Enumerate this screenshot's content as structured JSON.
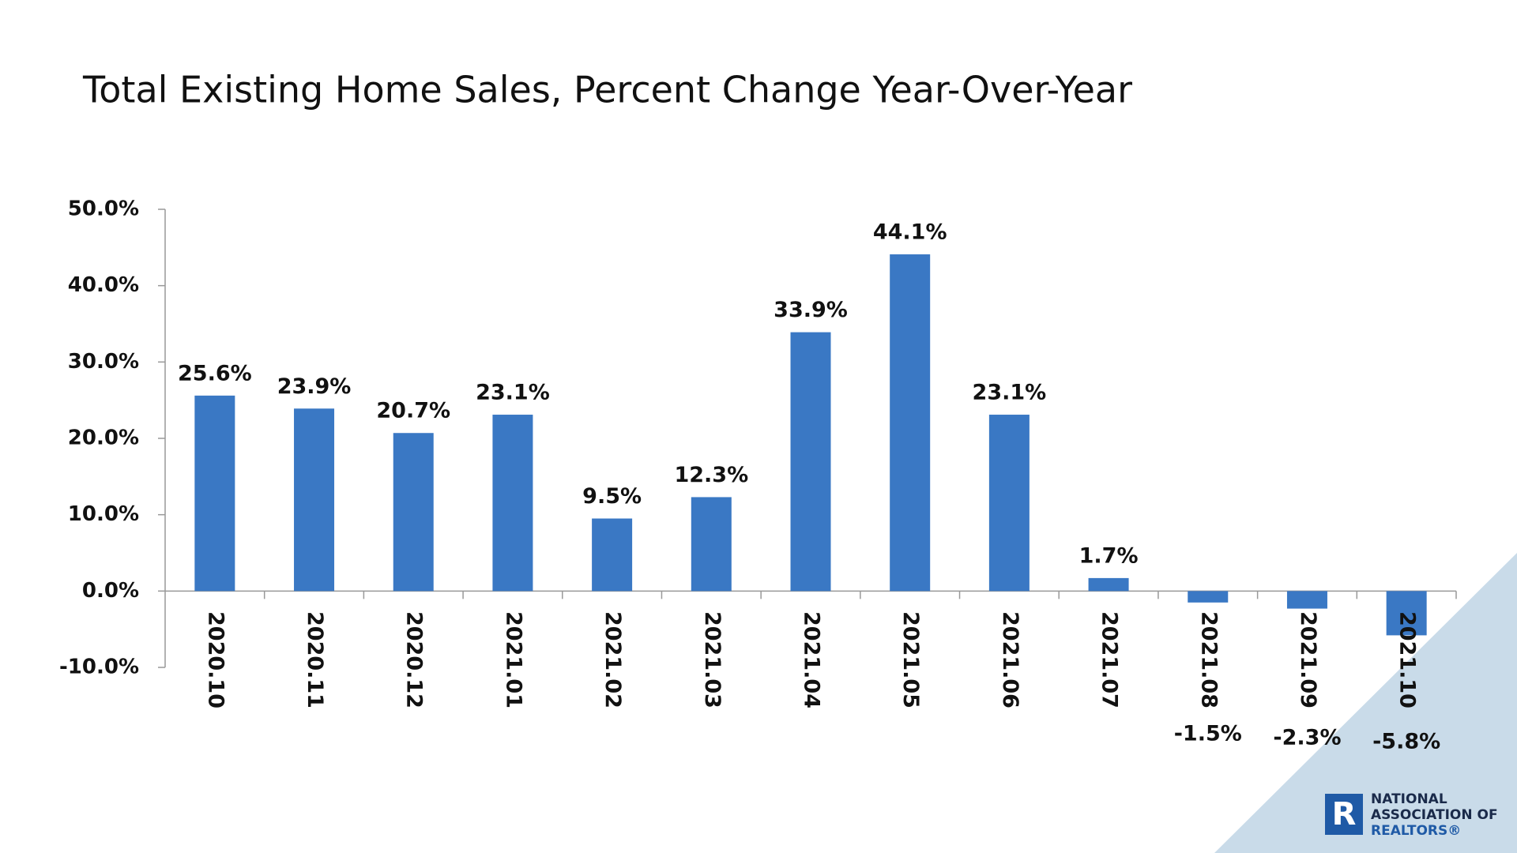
{
  "chart_data": {
    "type": "bar",
    "title": "Total Existing Home Sales, Percent Change Year-Over-Year",
    "categories": [
      "2020.10",
      "2020.11",
      "2020.12",
      "2021.01",
      "2021.02",
      "2021.03",
      "2021.04",
      "2021.05",
      "2021.06",
      "2021.07",
      "2021.08",
      "2021.09",
      "2021.10"
    ],
    "values": [
      25.6,
      23.9,
      20.7,
      23.1,
      9.5,
      12.3,
      33.9,
      44.1,
      23.1,
      1.7,
      -1.5,
      -2.3,
      -5.8
    ],
    "value_labels": [
      "25.6%",
      "23.9%",
      "20.7%",
      "23.1%",
      "9.5%",
      "12.3%",
      "33.9%",
      "44.1%",
      "23.1%",
      "1.7%",
      "-1.5%",
      "-2.3%",
      "-5.8%"
    ],
    "color": "#3a78c4",
    "ylim": [
      -10,
      50
    ],
    "yticks": [
      {
        "value": -10,
        "label": "-10.0%"
      },
      {
        "value": 0,
        "label": "0.0%"
      },
      {
        "value": 10,
        "label": "10.0%"
      },
      {
        "value": 20,
        "label": "20.0%"
      },
      {
        "value": 30,
        "label": "30.0%"
      },
      {
        "value": 40,
        "label": "40.0%"
      },
      {
        "value": 50,
        "label": "50.0%"
      }
    ],
    "grid": false
  },
  "logo": {
    "lines": [
      "NATIONAL",
      "ASSOCIATION OF",
      "REALTORS®"
    ]
  }
}
